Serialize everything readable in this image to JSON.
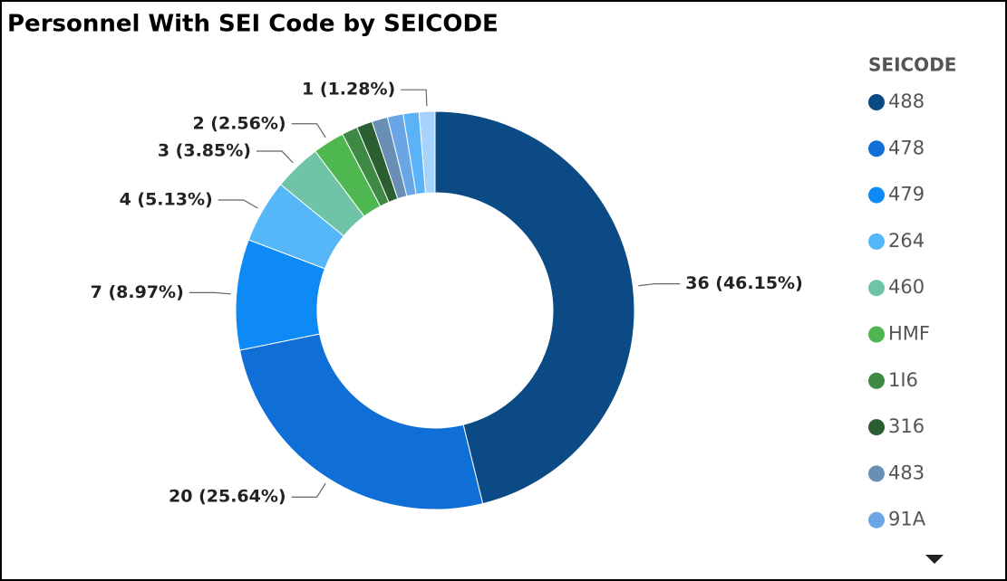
{
  "chart_data": {
    "type": "donut",
    "title": "Personnel With SEI Code by SEICODE",
    "legend_title": "SEICODE",
    "categories": [
      "488",
      "478",
      "479",
      "264",
      "460",
      "HMF",
      "1I6",
      "316",
      "483",
      "91A",
      null,
      null
    ],
    "values": [
      36,
      20,
      7,
      4,
      3,
      2,
      1,
      1,
      1,
      1,
      1,
      1
    ],
    "value_labels": [
      "36 (46.15%)",
      "20 (25.64%)",
      "7 (8.97%)",
      "4 (5.13%)",
      "3 (3.85%)",
      "2 (2.56%)",
      null,
      null,
      null,
      null,
      null,
      "1 (1.28%)"
    ],
    "colors": [
      "#0b4a85",
      "#0f6fd6",
      "#0d8af5",
      "#55b6f8",
      "#6fc4a7",
      "#4fb74f",
      "#3e8a45",
      "#2b5e30",
      "#6a8fb5",
      "#6aa6e6",
      "#5ab3f7",
      "#a6d3fb"
    ],
    "legend": "right"
  }
}
